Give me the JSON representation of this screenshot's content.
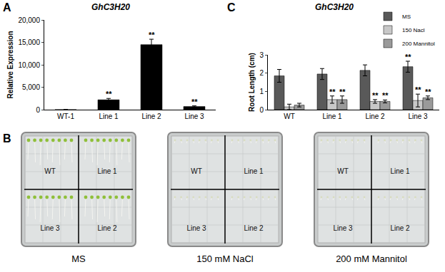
{
  "chart_data": [
    {
      "label": "A",
      "type": "bar",
      "title": "GhC3H20",
      "y_label": "Relative Expression",
      "categories": [
        "WT-1",
        "Line 1",
        "Line 2",
        "Line 3"
      ],
      "values": [
        10,
        2200,
        14500,
        700
      ],
      "errors": [
        0,
        300,
        1200,
        150
      ],
      "color": "#000000",
      "ylim": [
        0,
        20000
      ],
      "yticks": [
        0,
        {
          "value": 5000,
          "label": "5,000"
        },
        {
          "value": 10000,
          "label": "10,000"
        },
        {
          "value": 15000,
          "label": "15,000"
        },
        {
          "value": 20000,
          "label": "20,000"
        }
      ],
      "grid": false,
      "annotations": [
        {
          "category": "Line 1",
          "text": "**"
        },
        {
          "category": "Line 2",
          "text": "**"
        },
        {
          "category": "Line 3",
          "text": "**"
        }
      ]
    },
    {
      "label": "C",
      "type": "bar",
      "title": "GhC3H20",
      "y_label": "Root Length (cm)",
      "categories": [
        "WT",
        "Line 1",
        "Line 2",
        "Line 3"
      ],
      "series": [
        {
          "name": "MS",
          "color": "#595959",
          "values": [
            1.85,
            1.95,
            2.15,
            2.35
          ],
          "errors": [
            0.35,
            0.3,
            0.3,
            0.3
          ]
        },
        {
          "name": "150 Nacl",
          "color": "#c8c8c8",
          "values": [
            0.15,
            0.55,
            0.45,
            0.5
          ],
          "errors": [
            0.15,
            0.2,
            0.1,
            0.35
          ]
        },
        {
          "name": "200 Mannitol",
          "color": "#9a9a9a",
          "values": [
            0.25,
            0.55,
            0.45,
            0.65
          ],
          "errors": [
            0.1,
            0.2,
            0.08,
            0.1
          ]
        }
      ],
      "ylim": [
        0,
        3
      ],
      "yticks": [
        0,
        1,
        2,
        3
      ],
      "grid": false,
      "legend": "top right",
      "annotations": [
        {
          "category": "Line 1",
          "series": "150 Nacl",
          "text": "**"
        },
        {
          "category": "Line 1",
          "series": "200 Mannitol",
          "text": "**"
        },
        {
          "category": "Line 2",
          "series": "150 Nacl",
          "text": "**"
        },
        {
          "category": "Line 2",
          "series": "200 Mannitol",
          "text": "**"
        },
        {
          "category": "Line 3",
          "series": "MS",
          "text": "**"
        },
        {
          "category": "Line 3",
          "series": "150 Nacl",
          "text": "**"
        },
        {
          "category": "Line 3",
          "series": "200 Mannitol",
          "text": "**"
        }
      ]
    }
  ],
  "panel_b": {
    "label": "B",
    "plates": [
      {
        "caption": "MS",
        "labels": [
          "WT",
          "Line 1",
          "Line 3",
          "Line 2"
        ]
      },
      {
        "caption": "150 mM NaCl",
        "labels": [
          "WT",
          "Line 1",
          "Line 3",
          "Line 2"
        ]
      },
      {
        "caption": "200 mM Mannitol",
        "labels": [
          "WT",
          "Line 1",
          "Line 3",
          "Line 2"
        ]
      }
    ]
  }
}
